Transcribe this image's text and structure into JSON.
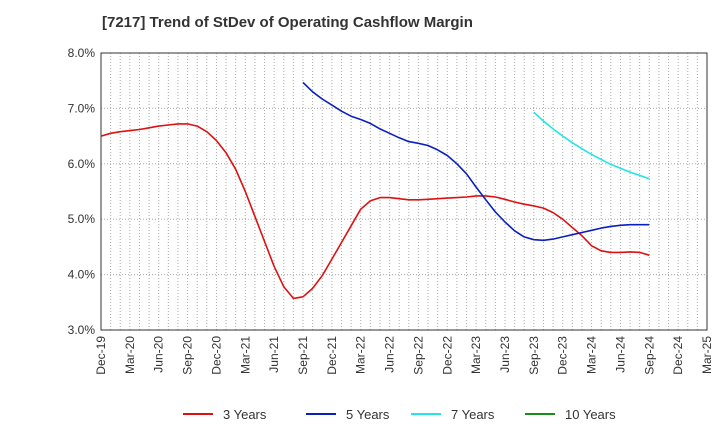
{
  "chart_data": {
    "type": "line",
    "title": "[7217]  Trend of StDev of Operating Cashflow Margin",
    "xlabel": "",
    "ylabel": "",
    "ylim": [
      3.0,
      8.0
    ],
    "y_ticks": [
      "3.0%",
      "4.0%",
      "5.0%",
      "6.0%",
      "7.0%",
      "8.0%"
    ],
    "y_tick_values": [
      3.0,
      4.0,
      5.0,
      6.0,
      7.0,
      8.0
    ],
    "x_ticks": [
      "Dec-19",
      "Mar-20",
      "Jun-20",
      "Sep-20",
      "Dec-20",
      "Mar-21",
      "Jun-21",
      "Sep-21",
      "Dec-21",
      "Mar-22",
      "Jun-22",
      "Sep-22",
      "Dec-22",
      "Mar-23",
      "Jun-23",
      "Sep-23",
      "Dec-23",
      "Mar-24",
      "Jun-24",
      "Sep-24",
      "Dec-24",
      "Mar-25"
    ],
    "grid": true,
    "legend_position": "bottom",
    "series": [
      {
        "name": "3 Years",
        "color": "#dd1111",
        "points": [
          [
            "Dec-19",
            6.5
          ],
          [
            "Jan-20",
            6.55
          ],
          [
            "Feb-20",
            6.58
          ],
          [
            "Mar-20",
            6.6
          ],
          [
            "Apr-20",
            6.62
          ],
          [
            "May-20",
            6.65
          ],
          [
            "Jun-20",
            6.68
          ],
          [
            "Jul-20",
            6.7
          ],
          [
            "Aug-20",
            6.72
          ],
          [
            "Sep-20",
            6.72
          ],
          [
            "Oct-20",
            6.68
          ],
          [
            "Nov-20",
            6.58
          ],
          [
            "Dec-20",
            6.42
          ],
          [
            "Jan-21",
            6.2
          ],
          [
            "Feb-21",
            5.9
          ],
          [
            "Mar-21",
            5.5
          ],
          [
            "Apr-21",
            5.05
          ],
          [
            "May-21",
            4.6
          ],
          [
            "Jun-21",
            4.15
          ],
          [
            "Jul-21",
            3.78
          ],
          [
            "Aug-21",
            3.57
          ],
          [
            "Sep-21",
            3.6
          ],
          [
            "Oct-21",
            3.75
          ],
          [
            "Nov-21",
            3.98
          ],
          [
            "Dec-21",
            4.28
          ],
          [
            "Jan-22",
            4.58
          ],
          [
            "Feb-22",
            4.88
          ],
          [
            "Mar-22",
            5.18
          ],
          [
            "Apr-22",
            5.33
          ],
          [
            "May-22",
            5.39
          ],
          [
            "Jun-22",
            5.39
          ],
          [
            "Jul-22",
            5.37
          ],
          [
            "Aug-22",
            5.35
          ],
          [
            "Sep-22",
            5.35
          ],
          [
            "Oct-22",
            5.36
          ],
          [
            "Nov-22",
            5.37
          ],
          [
            "Dec-22",
            5.38
          ],
          [
            "Jan-23",
            5.39
          ],
          [
            "Feb-23",
            5.4
          ],
          [
            "Mar-23",
            5.42
          ],
          [
            "Apr-23",
            5.42
          ],
          [
            "May-23",
            5.4
          ],
          [
            "Jun-23",
            5.36
          ],
          [
            "Jul-23",
            5.31
          ],
          [
            "Aug-23",
            5.27
          ],
          [
            "Sep-23",
            5.24
          ],
          [
            "Oct-23",
            5.2
          ],
          [
            "Nov-23",
            5.12
          ],
          [
            "Dec-23",
            5.0
          ],
          [
            "Jan-24",
            4.85
          ],
          [
            "Feb-24",
            4.7
          ],
          [
            "Mar-24",
            4.52
          ],
          [
            "Apr-24",
            4.43
          ],
          [
            "May-24",
            4.4
          ],
          [
            "Jun-24",
            4.4
          ],
          [
            "Jul-24",
            4.41
          ],
          [
            "Aug-24",
            4.4
          ],
          [
            "Sep-24",
            4.35
          ]
        ]
      },
      {
        "name": "5 Years",
        "color": "#0a1fbf",
        "points": [
          [
            "Sep-21",
            7.47
          ],
          [
            "Oct-21",
            7.3
          ],
          [
            "Nov-21",
            7.17
          ],
          [
            "Dec-21",
            7.06
          ],
          [
            "Jan-22",
            6.95
          ],
          [
            "Feb-22",
            6.86
          ],
          [
            "Mar-22",
            6.8
          ],
          [
            "Apr-22",
            6.73
          ],
          [
            "May-22",
            6.63
          ],
          [
            "Jun-22",
            6.55
          ],
          [
            "Jul-22",
            6.47
          ],
          [
            "Aug-22",
            6.4
          ],
          [
            "Sep-22",
            6.37
          ],
          [
            "Oct-22",
            6.33
          ],
          [
            "Nov-22",
            6.25
          ],
          [
            "Dec-22",
            6.15
          ],
          [
            "Jan-23",
            6.0
          ],
          [
            "Feb-23",
            5.82
          ],
          [
            "Mar-23",
            5.58
          ],
          [
            "Apr-23",
            5.35
          ],
          [
            "May-23",
            5.13
          ],
          [
            "Jun-23",
            4.95
          ],
          [
            "Jul-23",
            4.79
          ],
          [
            "Aug-23",
            4.68
          ],
          [
            "Sep-23",
            4.63
          ],
          [
            "Oct-23",
            4.62
          ],
          [
            "Nov-23",
            4.64
          ],
          [
            "Dec-23",
            4.68
          ],
          [
            "Jan-24",
            4.72
          ],
          [
            "Feb-24",
            4.76
          ],
          [
            "Mar-24",
            4.8
          ],
          [
            "Apr-24",
            4.84
          ],
          [
            "May-24",
            4.87
          ],
          [
            "Jun-24",
            4.89
          ],
          [
            "Jul-24",
            4.9
          ],
          [
            "Aug-24",
            4.9
          ],
          [
            "Sep-24",
            4.9
          ]
        ]
      },
      {
        "name": "7 Years",
        "color": "#22e5e5",
        "points": [
          [
            "Sep-23",
            6.93
          ],
          [
            "Oct-23",
            6.77
          ],
          [
            "Nov-23",
            6.63
          ],
          [
            "Dec-23",
            6.5
          ],
          [
            "Jan-24",
            6.38
          ],
          [
            "Feb-24",
            6.27
          ],
          [
            "Mar-24",
            6.17
          ],
          [
            "Apr-24",
            6.08
          ],
          [
            "May-24",
            5.99
          ],
          [
            "Jun-24",
            5.92
          ],
          [
            "Jul-24",
            5.85
          ],
          [
            "Aug-24",
            5.79
          ],
          [
            "Sep-24",
            5.73
          ]
        ]
      },
      {
        "name": "10 Years",
        "color": "#1a8c1a",
        "points": []
      }
    ]
  }
}
